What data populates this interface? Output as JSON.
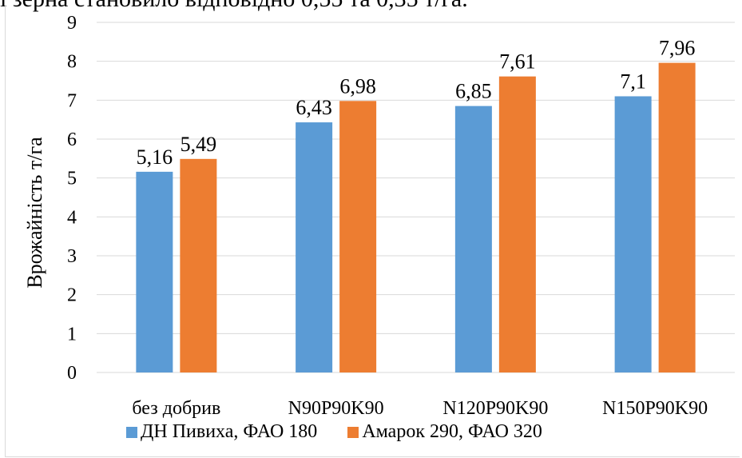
{
  "header_text": "і зерна становило відповідно 0,55 та 0,35 т/га.",
  "chart_data": {
    "type": "bar",
    "title": "",
    "xlabel": "",
    "ylabel": "Врожайність т/га",
    "ylim": [
      0,
      9
    ],
    "yticks": [
      "0",
      "1",
      "2",
      "3",
      "4",
      "5",
      "6",
      "7",
      "8",
      "9"
    ],
    "grid": true,
    "legend_position": "bottom",
    "categories": [
      "без добрив",
      "N90P90K90",
      "N120P90K90",
      "N150P90K90"
    ],
    "series": [
      {
        "name": "ДН Пивиха, ФАО 180",
        "color": "#5b9bd5",
        "values": [
          5.16,
          6.43,
          6.85,
          7.1
        ],
        "labels": [
          "5,16",
          "6,43",
          "6,85",
          "7,1"
        ]
      },
      {
        "name": "Амарок 290, ФАО 320",
        "color": "#ed7d31",
        "values": [
          5.49,
          6.98,
          7.61,
          7.96
        ],
        "labels": [
          "5,49",
          "6,98",
          "7,61",
          "7,96"
        ]
      }
    ]
  }
}
